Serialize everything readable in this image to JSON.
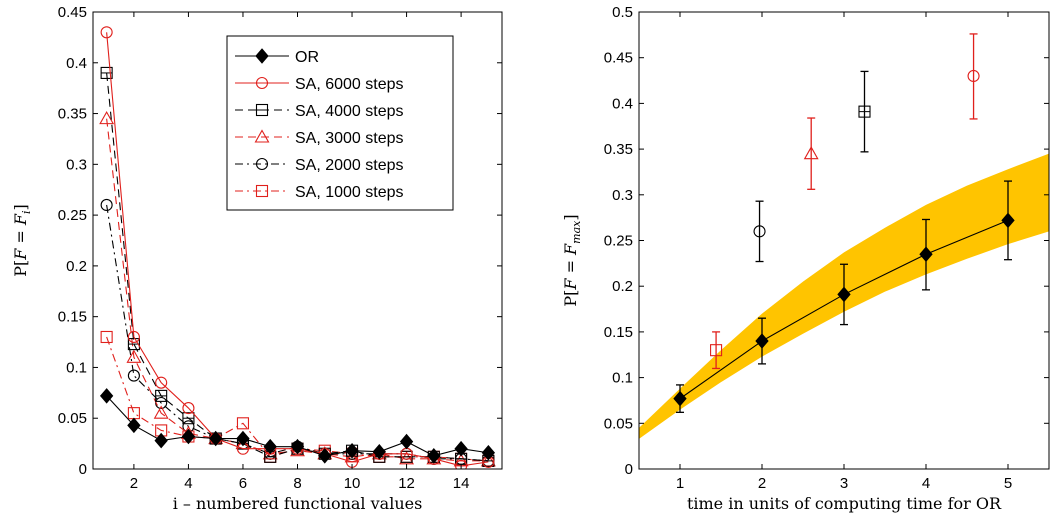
{
  "chart_data": [
    {
      "type": "line",
      "title": "",
      "xlabel": "i – numbered functional values",
      "ylabel": "P[F = F_i]",
      "ylabel_parts": {
        "pre": "P[",
        "var": "F",
        "eq": " = ",
        "sub_base": "F",
        "sub": "i",
        "post": "]"
      },
      "xlim": [
        0.5,
        15.5
      ],
      "ylim": [
        0,
        0.45
      ],
      "xticks": [
        2,
        4,
        6,
        8,
        10,
        12,
        14
      ],
      "xtick_labels": [
        "2",
        "4",
        "6",
        "8",
        "10",
        "12",
        "14"
      ],
      "yticks": [
        0,
        0.05,
        0.1,
        0.15,
        0.2,
        0.25,
        0.3,
        0.35,
        0.4,
        0.45
      ],
      "ytick_labels": [
        "0",
        "0.05",
        "0.1",
        "0.15",
        "0.2",
        "0.25",
        "0.3",
        "0.35",
        "0.4",
        "0.45"
      ],
      "grid": false,
      "legend_position": "top-right",
      "x": [
        1,
        2,
        3,
        4,
        5,
        6,
        7,
        8,
        9,
        10,
        11,
        12,
        13,
        14,
        15
      ],
      "series": [
        {
          "name": "OR",
          "color": "#000000",
          "dash": "solid",
          "marker": "diamond-filled",
          "values": [
            0.072,
            0.043,
            0.028,
            0.032,
            0.03,
            0.03,
            0.022,
            0.022,
            0.013,
            0.018,
            0.017,
            0.027,
            0.013,
            0.02,
            0.016
          ]
        },
        {
          "name": "SA, 6000 steps",
          "color": "#e0201c",
          "dash": "solid",
          "marker": "circle",
          "values": [
            0.43,
            0.13,
            0.085,
            0.06,
            0.03,
            0.02,
            0.02,
            0.02,
            0.015,
            0.007,
            0.015,
            0.015,
            0.01,
            0.003,
            0.007
          ]
        },
        {
          "name": "SA, 4000 steps",
          "color": "#000000",
          "dash": "dashed",
          "marker": "square-dot",
          "values": [
            0.39,
            0.123,
            0.072,
            0.05,
            0.03,
            0.025,
            0.012,
            0.02,
            0.015,
            0.018,
            0.012,
            0.012,
            0.012,
            0.01,
            0.008
          ]
        },
        {
          "name": "SA, 3000 steps",
          "color": "#e0201c",
          "dash": "dashed",
          "marker": "triangle",
          "values": [
            0.345,
            0.11,
            0.055,
            0.035,
            0.03,
            0.025,
            0.015,
            0.018,
            0.015,
            0.012,
            0.015,
            0.01,
            0.01,
            0.008,
            0.008
          ]
        },
        {
          "name": "SA, 2000 steps",
          "color": "#000000",
          "dash": "dashdot",
          "marker": "circle",
          "values": [
            0.26,
            0.092,
            0.065,
            0.042,
            0.03,
            0.025,
            0.015,
            0.022,
            0.015,
            0.015,
            0.015,
            0.015,
            0.01,
            0.01,
            0.008
          ]
        },
        {
          "name": "SA, 1000 steps",
          "color": "#e0201c",
          "dash": "dashdot",
          "marker": "square",
          "values": [
            0.13,
            0.055,
            0.038,
            0.032,
            0.03,
            0.045,
            0.012,
            0.02,
            0.018,
            0.015,
            0.012,
            0.012,
            0.012,
            0.01,
            0.008
          ]
        }
      ]
    },
    {
      "type": "scatter",
      "title": "",
      "xlabel": "time in units of computing time for OR",
      "ylabel": "P[F = F_max]",
      "ylabel_parts": {
        "pre": "P[",
        "var": "F",
        "eq": " = ",
        "sub_base": "F",
        "sub": "max",
        "post": "]"
      },
      "xlim": [
        0.5,
        5.5
      ],
      "ylim": [
        0,
        0.5
      ],
      "xticks": [
        1,
        2,
        3,
        4,
        5
      ],
      "xtick_labels": [
        "1",
        "2",
        "3",
        "4",
        "5"
      ],
      "yticks": [
        0,
        0.05,
        0.1,
        0.15,
        0.2,
        0.25,
        0.3,
        0.35,
        0.4,
        0.45,
        0.5
      ],
      "ytick_labels": [
        "0",
        "0.05",
        "0.1",
        "0.15",
        "0.2",
        "0.25",
        "0.3",
        "0.35",
        "0.4",
        "0.45",
        "0.5"
      ],
      "grid": false,
      "band": {
        "color": "#ffc400",
        "x": [
          0.5,
          1,
          1.5,
          2,
          2.5,
          3,
          3.5,
          4,
          4.5,
          5,
          5.5
        ],
        "lower": [
          0.033,
          0.065,
          0.095,
          0.123,
          0.148,
          0.172,
          0.194,
          0.213,
          0.23,
          0.246,
          0.26
        ],
        "upper": [
          0.045,
          0.088,
          0.13,
          0.17,
          0.205,
          0.237,
          0.264,
          0.289,
          0.31,
          0.328,
          0.345
        ]
      },
      "series": [
        {
          "name": "OR",
          "color": "#000000",
          "marker": "diamond-filled",
          "connected": true,
          "points": [
            {
              "x": 1,
              "y": 0.077,
              "err_low": 0.062,
              "err_high": 0.092
            },
            {
              "x": 2,
              "y": 0.14,
              "err_low": 0.115,
              "err_high": 0.165
            },
            {
              "x": 3,
              "y": 0.191,
              "err_low": 0.158,
              "err_high": 0.224
            },
            {
              "x": 4,
              "y": 0.235,
              "err_low": 0.196,
              "err_high": 0.273
            },
            {
              "x": 5,
              "y": 0.272,
              "err_low": 0.229,
              "err_high": 0.315
            }
          ]
        },
        {
          "name": "SA, 1000 steps",
          "color": "#e0201c",
          "marker": "square",
          "connected": false,
          "points": [
            {
              "x": 1.44,
              "y": 0.13,
              "err_low": 0.11,
              "err_high": 0.15
            }
          ]
        },
        {
          "name": "SA, 2000 steps",
          "color": "#000000",
          "marker": "circle",
          "connected": false,
          "points": [
            {
              "x": 1.97,
              "y": 0.26,
              "err_low": 0.227,
              "err_high": 0.293
            }
          ]
        },
        {
          "name": "SA, 3000 steps",
          "color": "#e0201c",
          "marker": "triangle",
          "connected": false,
          "points": [
            {
              "x": 2.6,
              "y": 0.345,
              "err_low": 0.306,
              "err_high": 0.384
            }
          ]
        },
        {
          "name": "SA, 4000 steps",
          "color": "#000000",
          "marker": "square-dot",
          "connected": false,
          "points": [
            {
              "x": 3.25,
              "y": 0.391,
              "err_low": 0.347,
              "err_high": 0.435
            }
          ]
        },
        {
          "name": "SA, 6000 steps",
          "color": "#e0201c",
          "marker": "circle",
          "connected": false,
          "points": [
            {
              "x": 4.58,
              "y": 0.43,
              "err_low": 0.383,
              "err_high": 0.476
            }
          ]
        }
      ]
    }
  ]
}
